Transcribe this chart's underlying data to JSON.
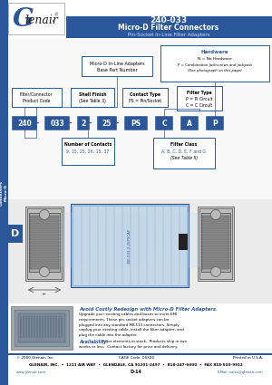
{
  "title_line1": "240-033",
  "title_line2": "Micro-D Filter Connectors",
  "title_line3": "Pin-Socket In-Line Filter Adapters",
  "header_bg": "#2B579A",
  "sidebar_bg": "#2B579A",
  "sidebar_text": "Connectors\nMicro-D",
  "part_segments": [
    "240",
    "033",
    "2",
    "25",
    "PS",
    "C",
    "A",
    "P"
  ],
  "medium_blue": "#2B579A",
  "light_gray_bg": "#F0F0F0",
  "white": "#FFFFFF",
  "avoid_title": "Avoid Costly Redesign with Micro-D Filter Adapters.",
  "avoid_text1": "Upgrade your existing cables and boxes to meet EMI",
  "avoid_text2": "requirements. These pin-socket adapters can be",
  "avoid_text3": "plugged into any standard MIL513 connectors. Simply",
  "avoid_text4": "unplug your existing cable, install the filter adapter, and",
  "avoid_text5": "plug the cable into the adapter.",
  "avail_title": "Availability:",
  "avail_text1": " Filter elements in stock.  Products ship in two",
  "avail_text2": "weeks or less.  Contact factory for price and delivery.",
  "footer_copy": "© 2000 Glenair, Inc.",
  "footer_cage": "CAGE Code: 06324",
  "footer_printed": "Printed in U.S.A.",
  "footer_main": "GLENAIR, INC.  •  1211 AIR WAY  •  GLENDALE, CA 91201-2497  •  818-247-6000  •  FAX 818-500-9912",
  "footer_web": "www.glenair.com",
  "footer_page": "D-14",
  "footer_email": "EMail: sales@glenair.com"
}
